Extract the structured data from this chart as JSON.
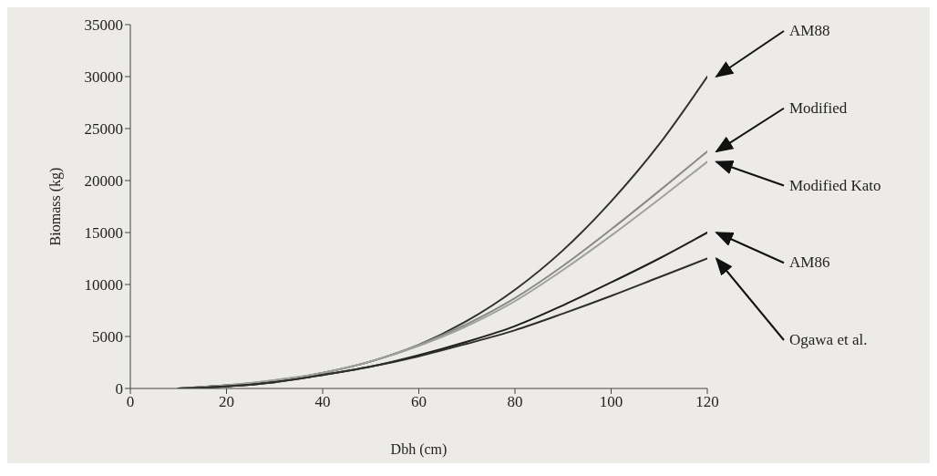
{
  "chart_data": {
    "type": "line",
    "xlabel": "Dbh (cm)",
    "ylabel": "Biomass (kg)",
    "x": [
      10,
      20,
      30,
      40,
      50,
      60,
      70,
      80,
      90,
      100,
      110,
      120
    ],
    "series": [
      {
        "name": "AM88",
        "color": "#303030",
        "values": [
          0,
          300,
          700,
          1500,
          2600,
          4200,
          6500,
          9500,
          13300,
          18000,
          23500,
          30000
        ]
      },
      {
        "name": "Modified",
        "color": "#8a8a8a",
        "values": [
          0,
          300,
          800,
          1500,
          2600,
          4200,
          6200,
          8700,
          11800,
          15300,
          19000,
          22800
        ]
      },
      {
        "name": "Modified Kato",
        "color": "#a0a0a0",
        "values": [
          0,
          300,
          800,
          1500,
          2600,
          4100,
          6000,
          8400,
          11400,
          14700,
          18200,
          21800
        ]
      },
      {
        "name": "AM86",
        "color": "#1e1e1e",
        "values": [
          0,
          200,
          600,
          1300,
          2100,
          3200,
          4500,
          6000,
          8000,
          10200,
          12500,
          15000
        ]
      },
      {
        "name": "Ogawa et al.",
        "color": "#2e2e2e",
        "values": [
          0,
          200,
          600,
          1300,
          2100,
          3100,
          4300,
          5600,
          7200,
          8900,
          10700,
          12500
        ]
      }
    ],
    "xlim": [
      0,
      120
    ],
    "xticks": [
      0,
      20,
      40,
      60,
      80,
      100,
      120
    ],
    "ylim": [
      0,
      35000
    ],
    "yticks": [
      0,
      5000,
      10000,
      15000,
      20000,
      25000,
      30000,
      35000
    ],
    "grid": false,
    "legend": false,
    "marker": "none",
    "line_style": "solid"
  }
}
